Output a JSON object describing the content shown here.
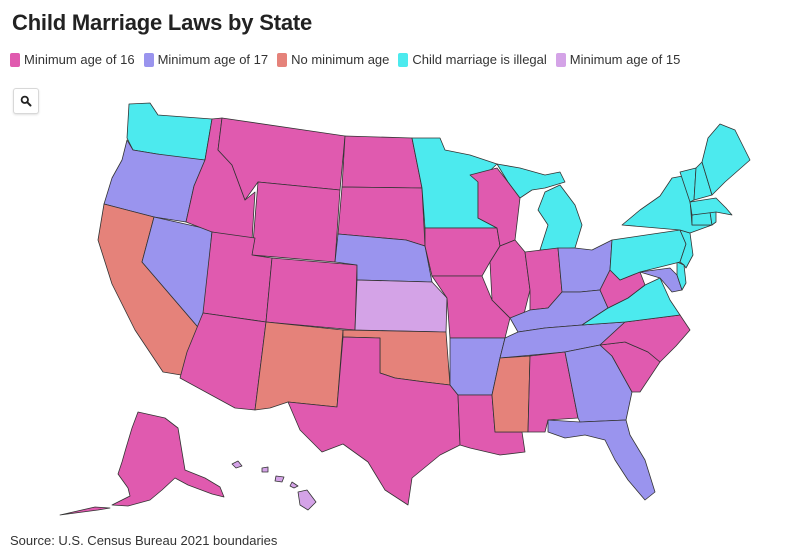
{
  "title": "Child Marriage Laws by State",
  "source": "Source: U.S. Census Bureau 2021 boundaries",
  "zoom": {
    "icon": "search-icon"
  },
  "legend": [
    {
      "key": "age16",
      "label": "Minimum age of 16",
      "color": "#e05aaf"
    },
    {
      "key": "age17",
      "label": "Minimum age of 17",
      "color": "#9a94ee"
    },
    {
      "key": "none",
      "label": "No minimum age",
      "color": "#e5827a"
    },
    {
      "key": "illegal",
      "label": "Child marriage is illegal",
      "color": "#4ceaee"
    },
    {
      "key": "age15",
      "label": "Minimum age of 15",
      "color": "#d4a3e7"
    }
  ],
  "states": {
    "WA": "illegal",
    "OR": "age17",
    "CA": "none",
    "NV": "age17",
    "ID": "age16",
    "MT": "age16",
    "WY": "age16",
    "UT": "age16",
    "AZ": "age16",
    "CO": "age16",
    "NM": "none",
    "ND": "age16",
    "SD": "age16",
    "NE": "age17",
    "KS": "age15",
    "OK": "none",
    "TX": "age16",
    "MN": "illegal",
    "IA": "age16",
    "MO": "age16",
    "AR": "age17",
    "LA": "age16",
    "WI": "age16",
    "IL": "age16",
    "MS": "none",
    "AL": "age16",
    "TN": "age17",
    "KY": "age17",
    "IN": "age16",
    "MI": "illegal",
    "OH": "age17",
    "GA": "age17",
    "FL": "age17",
    "SC": "age16",
    "NC": "age16",
    "VA": "illegal",
    "WV": "age16",
    "MD": "age17",
    "DE": "illegal",
    "PA": "illegal",
    "NJ": "illegal",
    "NY": "illegal",
    "CT": "illegal",
    "RI": "illegal",
    "MA": "illegal",
    "VT": "illegal",
    "NH": "illegal",
    "ME": "illegal",
    "AK": "age16",
    "HI": "age15"
  }
}
